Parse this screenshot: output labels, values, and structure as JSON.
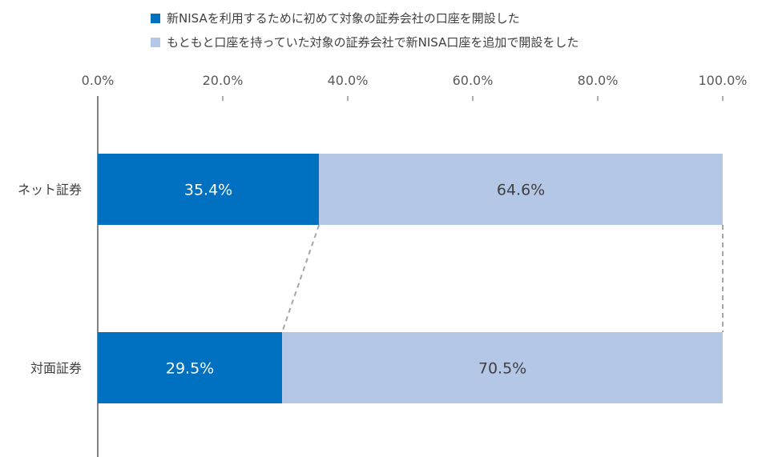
{
  "chart_data": {
    "type": "bar",
    "stacked": true,
    "orientation": "horizontal",
    "categories": [
      "ネット証券",
      "対面証券"
    ],
    "series": [
      {
        "name": "新NISAを利用するために初めて対象の証券会社の口座を開設した",
        "values": [
          35.4,
          29.5
        ],
        "color": "#0070c0",
        "label_color": "#ffffff"
      },
      {
        "name": "もともと口座を持っていた対象の証券会社で新NISA口座を追加で開設をした",
        "values": [
          64.6,
          70.5
        ],
        "color": "#b4c7e7",
        "label_color": "#404040"
      }
    ],
    "data_labels": [
      [
        "35.4%",
        "29.5%"
      ],
      [
        "64.6%",
        "70.5%"
      ]
    ],
    "x_ticks": [
      "0.0%",
      "20.0%",
      "40.0%",
      "60.0%",
      "80.0%",
      "100.0%"
    ],
    "x_tick_values": [
      0,
      20,
      40,
      60,
      80,
      100
    ],
    "xlim": [
      0,
      100
    ],
    "legend_position": "top",
    "series_lines": true,
    "axis_color": "#595959",
    "connector_color": "#a6a6a6"
  }
}
